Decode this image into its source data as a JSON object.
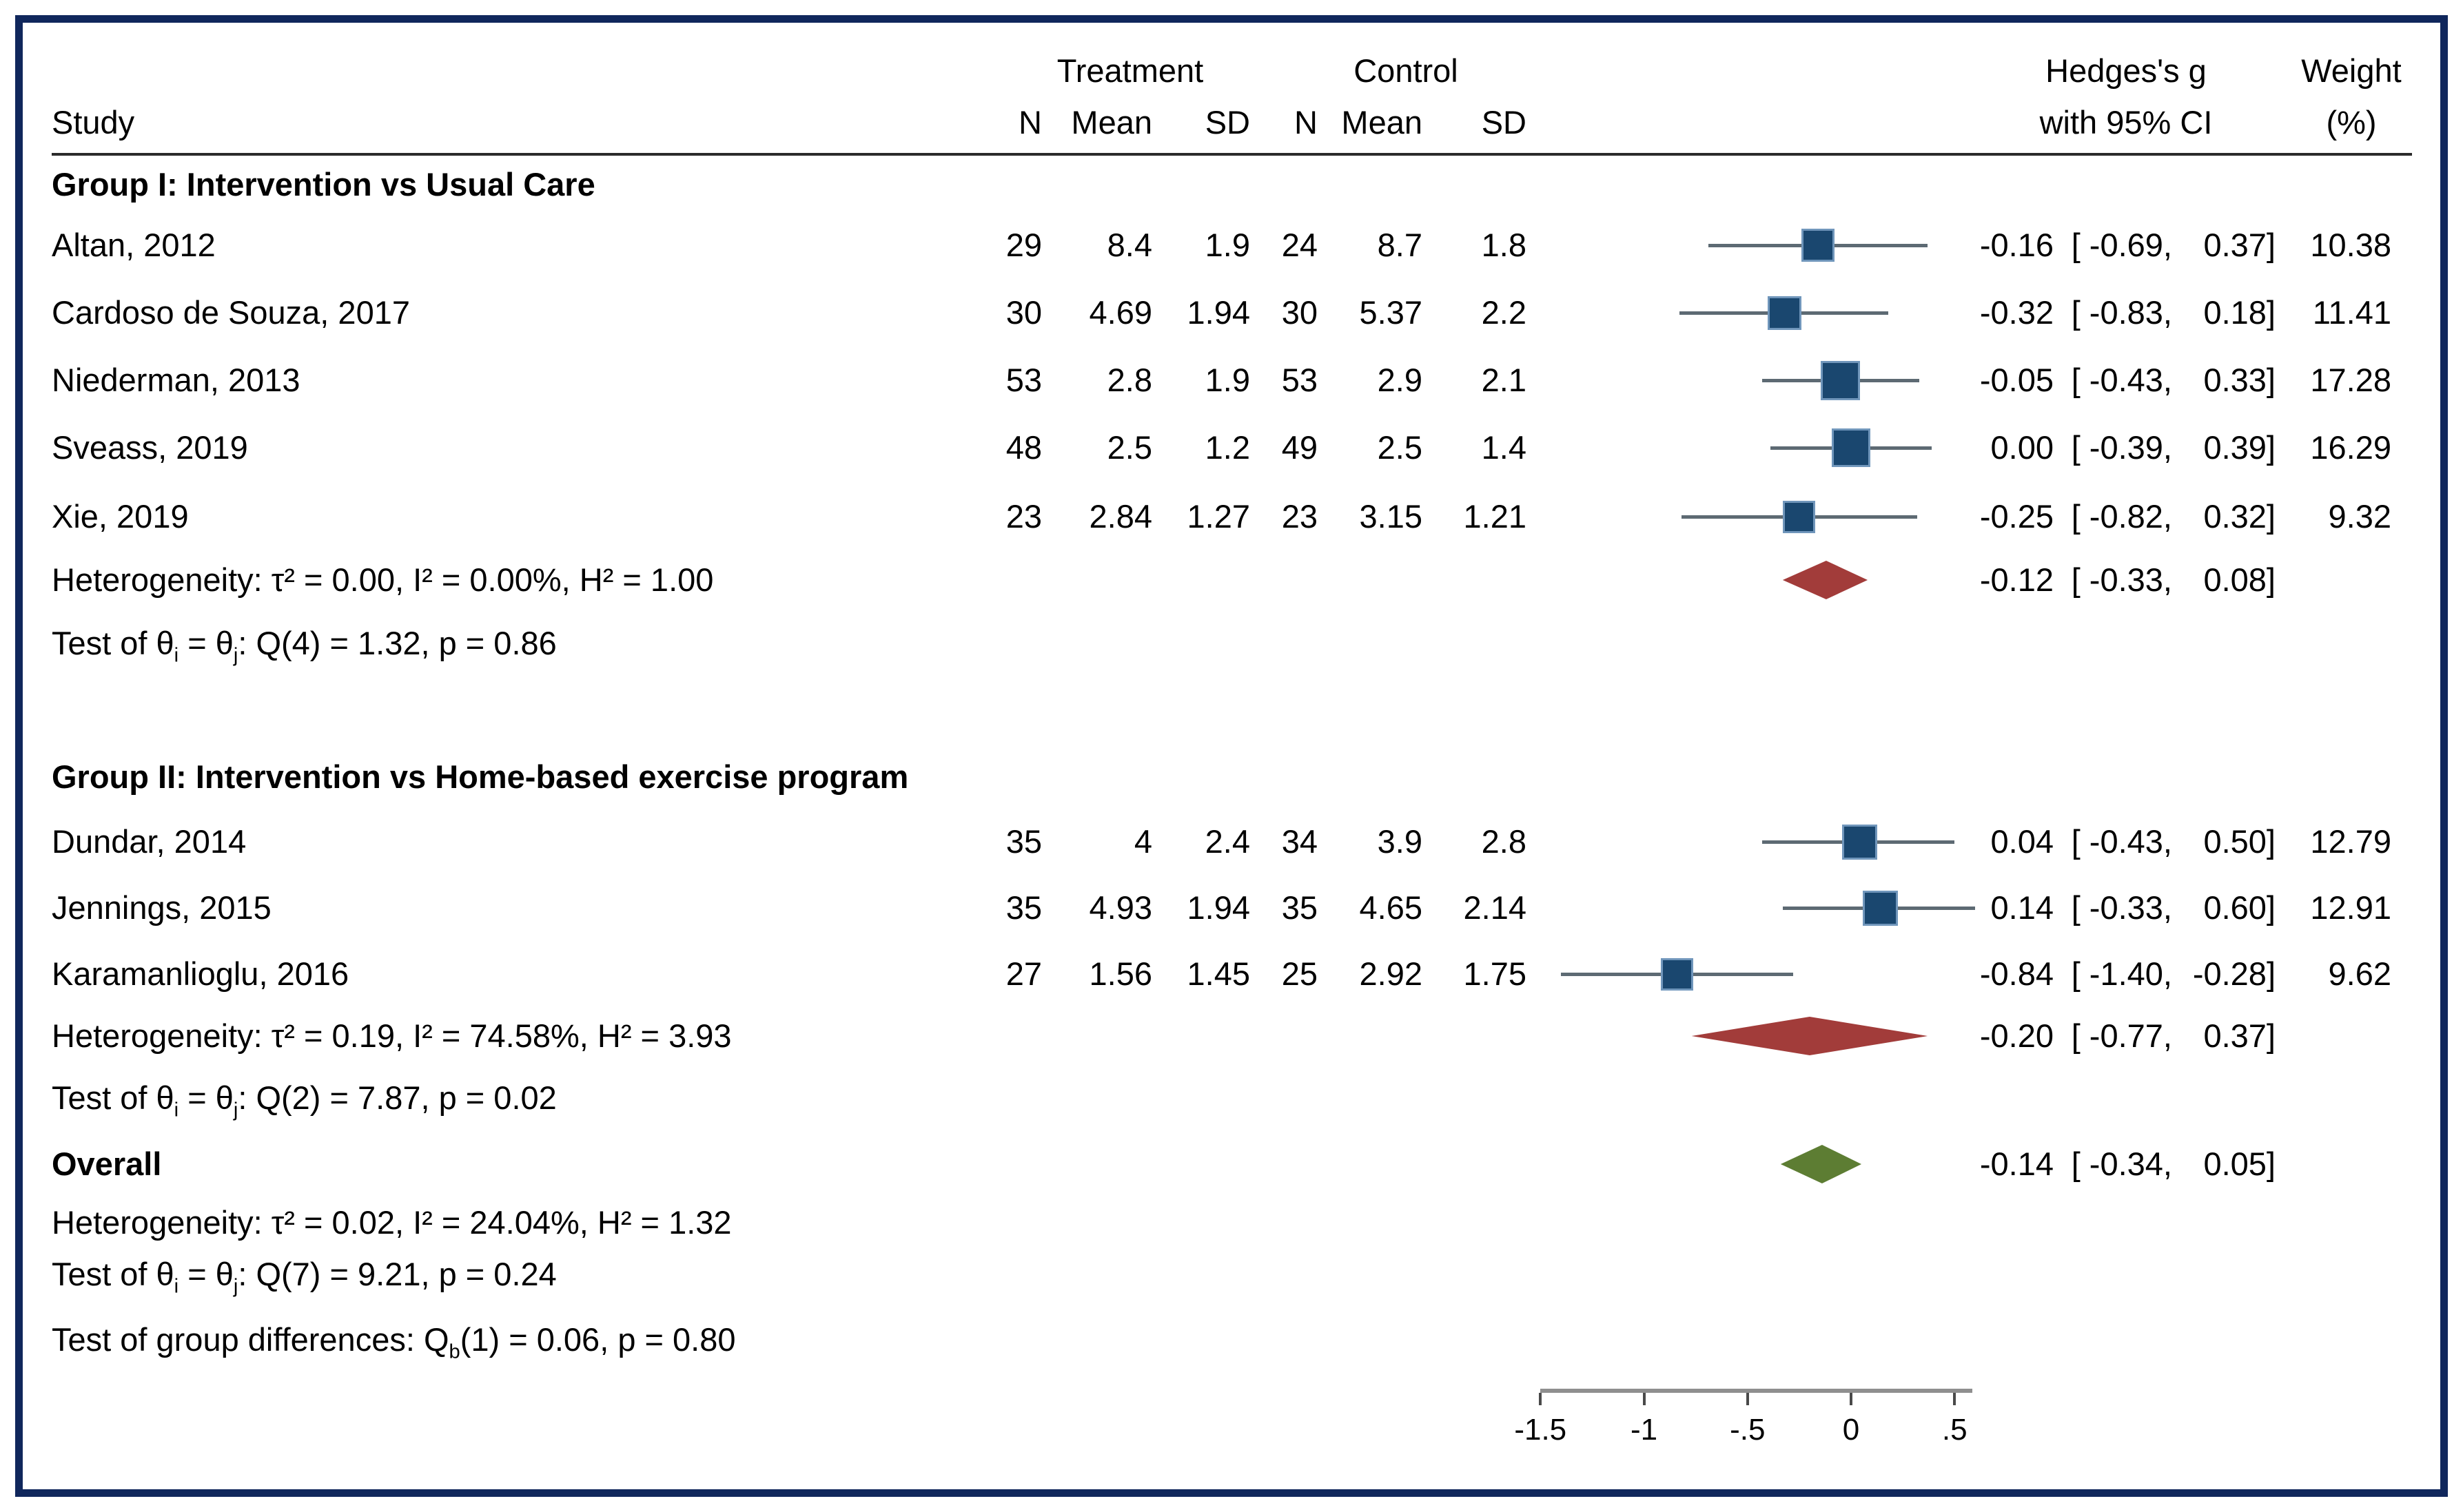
{
  "figure": {
    "border_color": "#10275c",
    "background": "#ffffff"
  },
  "header": {
    "study": "Study",
    "treatment": "Treatment",
    "control": "Control",
    "effect_line1": "Hedges's g",
    "effect_line2": "with 95% CI",
    "weight_line1": "Weight",
    "weight_line2": "(%)",
    "sub_columns": [
      "N",
      "Mean",
      "SD",
      "N",
      "Mean",
      "SD"
    ]
  },
  "chart_data": {
    "type": "forest",
    "effect_measure": "Hedges's g",
    "axis": {
      "ticks": [
        -1.5,
        -1,
        -0.5,
        0,
        0.5
      ],
      "tick_labels": [
        "-1.5",
        "-1",
        "-.5",
        "0",
        ".5"
      ],
      "xlim": [
        -1.5,
        0.5
      ]
    },
    "style": {
      "square_color": "#1a476f",
      "square_border": "#7096bb",
      "ci_color": "#5d6a73",
      "group_diamond_color": "#a23c3a",
      "overall_diamond_color": "#5d7d33",
      "axis_color": "#8f8f8f"
    },
    "groups": [
      {
        "title": "Group I: Intervention vs Usual Care",
        "studies": [
          {
            "study": "Altan, 2012",
            "t_n": "29",
            "t_mean": "8.4",
            "t_sd": "1.9",
            "c_n": "24",
            "c_mean": "8.7",
            "c_sd": "1.8",
            "est": -0.16,
            "lo": -0.69,
            "hi": 0.37,
            "est_str": "-0.16",
            "lo_str": "-0.69",
            "hi_str": "0.37",
            "weight": "10.38",
            "weight_val": 10.38
          },
          {
            "study": "Cardoso de Souza, 2017",
            "t_n": "30",
            "t_mean": "4.69",
            "t_sd": "1.94",
            "c_n": "30",
            "c_mean": "5.37",
            "c_sd": "2.2",
            "est": -0.32,
            "lo": -0.83,
            "hi": 0.18,
            "est_str": "-0.32",
            "lo_str": "-0.83",
            "hi_str": "0.18",
            "weight": "11.41",
            "weight_val": 11.41
          },
          {
            "study": "Niederman, 2013",
            "t_n": "53",
            "t_mean": "2.8",
            "t_sd": "1.9",
            "c_n": "53",
            "c_mean": "2.9",
            "c_sd": "2.1",
            "est": -0.05,
            "lo": -0.43,
            "hi": 0.33,
            "est_str": "-0.05",
            "lo_str": "-0.43",
            "hi_str": "0.33",
            "weight": "17.28",
            "weight_val": 17.28
          },
          {
            "study": "Sveass, 2019",
            "t_n": "48",
            "t_mean": "2.5",
            "t_sd": "1.2",
            "c_n": "49",
            "c_mean": "2.5",
            "c_sd": "1.4",
            "est": 0.0,
            "lo": -0.39,
            "hi": 0.39,
            "est_str": "0.00",
            "lo_str": "-0.39",
            "hi_str": "0.39",
            "weight": "16.29",
            "weight_val": 16.29
          },
          {
            "study": "Xie, 2019",
            "t_n": "23",
            "t_mean": "2.84",
            "t_sd": "1.27",
            "c_n": "23",
            "c_mean": "3.15",
            "c_sd": "1.21",
            "est": -0.25,
            "lo": -0.82,
            "hi": 0.32,
            "est_str": "-0.25",
            "lo_str": "-0.82",
            "hi_str": "0.32",
            "weight": "9.32",
            "weight_val": 9.32
          }
        ],
        "heterogeneity": "Heterogeneity: τ² = 0.00, I² = 0.00%, H² = 1.00",
        "test": "Test of θ~i~ = θ~j~: Q(4) = 1.32, p = 0.86",
        "summary": {
          "est": -0.12,
          "lo": -0.33,
          "hi": 0.08,
          "est_str": "-0.12",
          "lo_str": "-0.33",
          "hi_str": "0.08"
        }
      },
      {
        "title": "Group II: Intervention vs Home-based exercise program",
        "studies": [
          {
            "study": "Dundar, 2014",
            "t_n": "35",
            "t_mean": "4",
            "t_sd": "2.4",
            "c_n": "34",
            "c_mean": "3.9",
            "c_sd": "2.8",
            "est": 0.04,
            "lo": -0.43,
            "hi": 0.5,
            "est_str": "0.04",
            "lo_str": "-0.43",
            "hi_str": "0.50",
            "weight": "12.79",
            "weight_val": 12.79
          },
          {
            "study": "Jennings, 2015",
            "t_n": "35",
            "t_mean": "4.93",
            "t_sd": "1.94",
            "c_n": "35",
            "c_mean": "4.65",
            "c_sd": "2.14",
            "est": 0.14,
            "lo": -0.33,
            "hi": 0.6,
            "est_str": "0.14",
            "lo_str": "-0.33",
            "hi_str": "0.60",
            "weight": "12.91",
            "weight_val": 12.91
          },
          {
            "study": "Karamanlioglu, 2016",
            "t_n": "27",
            "t_mean": "1.56",
            "t_sd": "1.45",
            "c_n": "25",
            "c_mean": "2.92",
            "c_sd": "1.75",
            "est": -0.84,
            "lo": -1.4,
            "hi": -0.28,
            "est_str": "-0.84",
            "lo_str": "-1.40",
            "hi_str": "-0.28",
            "weight": "9.62",
            "weight_val": 9.62
          }
        ],
        "heterogeneity": "Heterogeneity: τ² = 0.19, I² = 74.58%, H² = 3.93",
        "test": "Test of θ~i~ = θ~j~: Q(2) = 7.87, p = 0.02",
        "summary": {
          "est": -0.2,
          "lo": -0.77,
          "hi": 0.37,
          "est_str": "-0.20",
          "lo_str": "-0.77",
          "hi_str": "0.37"
        }
      }
    ],
    "overall": {
      "label": "Overall",
      "summary": {
        "est": -0.14,
        "lo": -0.34,
        "hi": 0.05,
        "est_str": "-0.14",
        "lo_str": "-0.34",
        "hi_str": "0.05"
      },
      "heterogeneity": "Heterogeneity: τ² = 0.02, I² = 24.04%, H² = 1.32",
      "test": "Test of θ~i~ = θ~j~: Q(7) = 9.21, p = 0.24"
    },
    "group_difference_test": "Test of group differences: Q~b~(1) = 0.06, p = 0.80"
  }
}
